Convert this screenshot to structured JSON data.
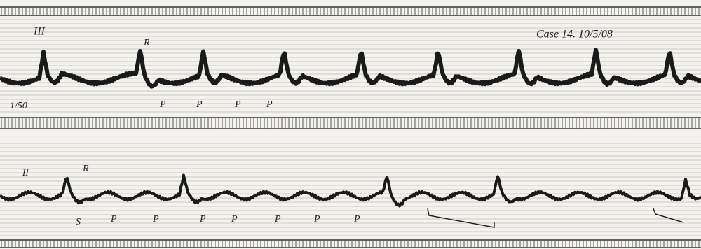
{
  "strips": [
    {
      "lead": "III",
      "case": "Case 14. 10/5/08",
      "scale": "1/50",
      "marks": [
        "R",
        "P",
        "P",
        "P",
        "P"
      ]
    },
    {
      "lead": "II",
      "marks": [
        "R",
        "S",
        "P",
        "P",
        "P",
        "P",
        "P",
        "P",
        "P"
      ]
    }
  ]
}
